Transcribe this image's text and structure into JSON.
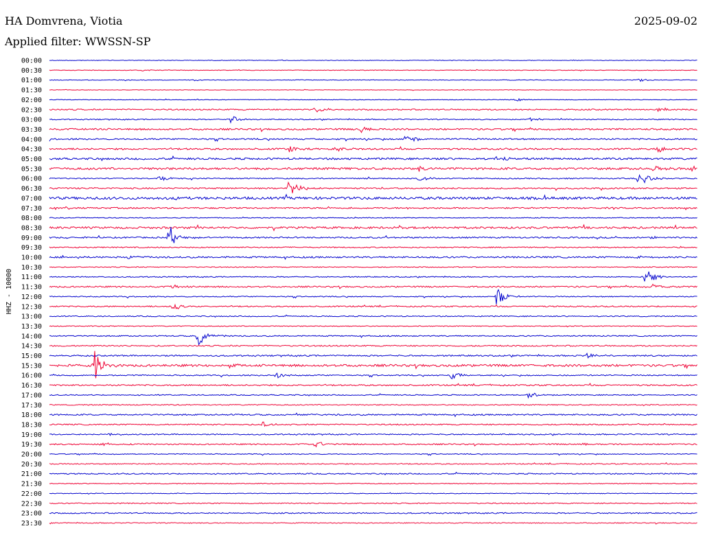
{
  "header": {
    "station": "HA Domvrena, Viotia",
    "date": "2025-09-02",
    "filter": "Applied filter: WWSSN-SP"
  },
  "chart_data": {
    "type": "line",
    "ylabel": "HHZ - 10000",
    "colors": {
      "even": "#0000cc",
      "odd": "#ee0033"
    },
    "rows": [
      {
        "label": "00:00",
        "noise": 0.4,
        "events": []
      },
      {
        "label": "00:30",
        "noise": 0.4,
        "events": [
          {
            "t": 0.14,
            "amp": 2
          }
        ]
      },
      {
        "label": "01:00",
        "noise": 0.4,
        "events": [
          {
            "t": 0.91,
            "amp": 2
          }
        ]
      },
      {
        "label": "01:30",
        "noise": 0.3,
        "events": []
      },
      {
        "label": "02:00",
        "noise": 0.4,
        "events": [
          {
            "t": 0.72,
            "amp": 2
          }
        ]
      },
      {
        "label": "02:30",
        "noise": 0.9,
        "events": [
          {
            "t": 0.41,
            "amp": 6
          },
          {
            "t": 0.94,
            "amp": 4
          }
        ]
      },
      {
        "label": "03:00",
        "noise": 0.7,
        "events": [
          {
            "t": 0.28,
            "amp": 6
          },
          {
            "t": 0.74,
            "amp": 3
          }
        ]
      },
      {
        "label": "03:30",
        "noise": 1.2,
        "events": [
          {
            "t": 0.48,
            "amp": 5
          }
        ]
      },
      {
        "label": "04:00",
        "noise": 1.0,
        "events": [
          {
            "t": 0.55,
            "amp": 8
          }
        ]
      },
      {
        "label": "04:30",
        "noise": 1.2,
        "events": [
          {
            "t": 0.37,
            "amp": 5
          },
          {
            "t": 0.44,
            "amp": 4
          },
          {
            "t": 0.94,
            "amp": 5
          }
        ]
      },
      {
        "label": "05:00",
        "noise": 1.4,
        "events": [
          {
            "t": 0.69,
            "amp": 3
          }
        ]
      },
      {
        "label": "05:30",
        "noise": 1.5,
        "events": [
          {
            "t": 0.57,
            "amp": 4
          },
          {
            "t": 0.93,
            "amp": 5
          },
          {
            "t": 0.99,
            "amp": 7
          }
        ]
      },
      {
        "label": "06:00",
        "noise": 0.8,
        "events": [
          {
            "t": 0.17,
            "amp": 4
          },
          {
            "t": 0.57,
            "amp": 4
          },
          {
            "t": 0.91,
            "amp": 14
          }
        ]
      },
      {
        "label": "06:30",
        "noise": 1.0,
        "events": [
          {
            "t": 0.37,
            "amp": 14
          }
        ]
      },
      {
        "label": "07:00",
        "noise": 1.8,
        "events": []
      },
      {
        "label": "07:30",
        "noise": 1.0,
        "events": []
      },
      {
        "label": "08:00",
        "noise": 0.6,
        "events": []
      },
      {
        "label": "08:30",
        "noise": 1.4,
        "events": []
      },
      {
        "label": "09:00",
        "noise": 1.0,
        "events": [
          {
            "t": 0.185,
            "amp": 18
          },
          {
            "t": 0.93,
            "amp": 3
          }
        ]
      },
      {
        "label": "09:30",
        "noise": 0.8,
        "events": []
      },
      {
        "label": "10:00",
        "noise": 1.1,
        "events": [
          {
            "t": 0.12,
            "amp": 3
          },
          {
            "t": 0.91,
            "amp": 3
          }
        ]
      },
      {
        "label": "10:30",
        "noise": 0.6,
        "events": []
      },
      {
        "label": "11:00",
        "noise": 0.7,
        "events": [
          {
            "t": 0.92,
            "amp": 14
          }
        ]
      },
      {
        "label": "11:30",
        "noise": 1.0,
        "events": [
          {
            "t": 0.19,
            "amp": 4
          },
          {
            "t": 0.93,
            "amp": 5
          }
        ]
      },
      {
        "label": "12:00",
        "noise": 0.7,
        "events": [
          {
            "t": 0.69,
            "amp": 14
          }
        ]
      },
      {
        "label": "12:30",
        "noise": 0.9,
        "events": [
          {
            "t": 0.19,
            "amp": 6
          }
        ]
      },
      {
        "label": "13:00",
        "noise": 0.7,
        "events": []
      },
      {
        "label": "13:30",
        "noise": 0.6,
        "events": []
      },
      {
        "label": "14:00",
        "noise": 0.8,
        "events": [
          {
            "t": 0.23,
            "amp": 14
          }
        ]
      },
      {
        "label": "14:30",
        "noise": 0.9,
        "events": []
      },
      {
        "label": "15:00",
        "noise": 1.0,
        "events": [
          {
            "t": 0.83,
            "amp": 3
          }
        ]
      },
      {
        "label": "15:30",
        "noise": 1.6,
        "events": [
          {
            "t": 0.07,
            "amp": 24
          },
          {
            "t": 0.275,
            "amp": 3
          }
        ]
      },
      {
        "label": "16:00",
        "noise": 0.8,
        "events": [
          {
            "t": 0.35,
            "amp": 4
          },
          {
            "t": 0.62,
            "amp": 6
          }
        ]
      },
      {
        "label": "16:30",
        "noise": 1.0,
        "events": []
      },
      {
        "label": "17:00",
        "noise": 0.7,
        "events": [
          {
            "t": 0.74,
            "amp": 5
          }
        ]
      },
      {
        "label": "17:30",
        "noise": 0.7,
        "events": []
      },
      {
        "label": "18:00",
        "noise": 1.0,
        "events": []
      },
      {
        "label": "18:30",
        "noise": 0.9,
        "events": [
          {
            "t": 0.33,
            "amp": 6
          },
          {
            "t": 0.9,
            "amp": 2
          }
        ]
      },
      {
        "label": "19:00",
        "noise": 0.8,
        "events": [
          {
            "t": 0.09,
            "amp": 3
          }
        ]
      },
      {
        "label": "19:30",
        "noise": 0.9,
        "events": [
          {
            "t": 0.08,
            "amp": 3
          },
          {
            "t": 0.41,
            "amp": 5
          },
          {
            "t": 0.82,
            "amp": 2
          }
        ]
      },
      {
        "label": "20:00",
        "noise": 0.6,
        "events": []
      },
      {
        "label": "20:30",
        "noise": 0.7,
        "events": []
      },
      {
        "label": "21:00",
        "noise": 0.8,
        "events": []
      },
      {
        "label": "21:30",
        "noise": 0.6,
        "events": []
      },
      {
        "label": "22:00",
        "noise": 0.5,
        "events": []
      },
      {
        "label": "22:30",
        "noise": 0.7,
        "events": []
      },
      {
        "label": "23:00",
        "noise": 0.8,
        "events": []
      },
      {
        "label": "23:30",
        "noise": 0.6,
        "events": []
      }
    ]
  }
}
